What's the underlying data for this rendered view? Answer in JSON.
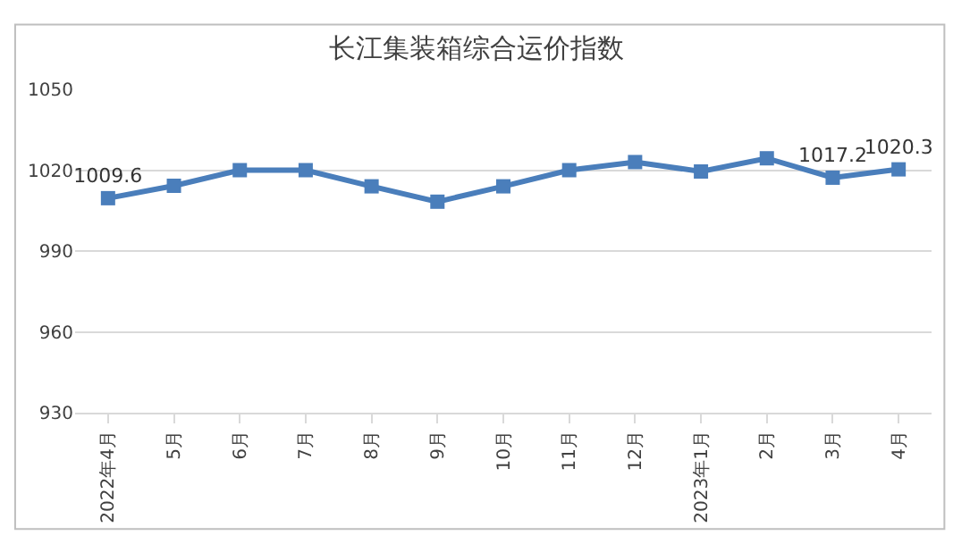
{
  "chart_data": {
    "type": "line",
    "title": "长江集装箱综合运价指数",
    "categories": [
      "2022年4月",
      "5月",
      "6月",
      "7月",
      "8月",
      "9月",
      "10月",
      "11月",
      "12月",
      "2023年1月",
      "2月",
      "3月",
      "4月"
    ],
    "series": [
      {
        "color": "#4a7ebb",
        "values": [
          1009.6,
          1014.2,
          1020,
          1020,
          1014,
          1008.3,
          1014,
          1020,
          1023,
          1019.5,
          1024.4,
          1017.2,
          1020.3
        ],
        "value_labels": [
          "1009.6",
          null,
          null,
          null,
          null,
          null,
          null,
          null,
          null,
          null,
          null,
          "1017.2",
          "1020.3"
        ]
      }
    ],
    "ylim": [
      930,
      1050
    ],
    "yticks": [
      930,
      960,
      990,
      1020,
      1050
    ],
    "grid": "y",
    "marker": "square",
    "line_style": "solid",
    "legend": false
  }
}
